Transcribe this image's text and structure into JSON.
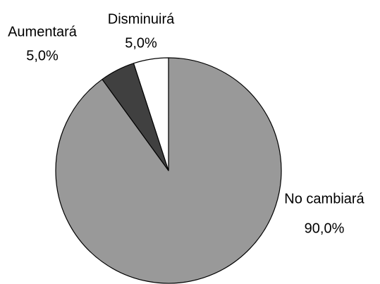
{
  "chart_data": {
    "type": "pie",
    "categories": [
      "No cambiará",
      "Aumentará",
      "Disminuirá"
    ],
    "values": [
      90,
      5,
      5
    ],
    "value_labels": [
      "90,0%",
      "5,0%",
      "5,0%"
    ],
    "colors": [
      "#999999",
      "#404040",
      "#ffffff"
    ]
  }
}
